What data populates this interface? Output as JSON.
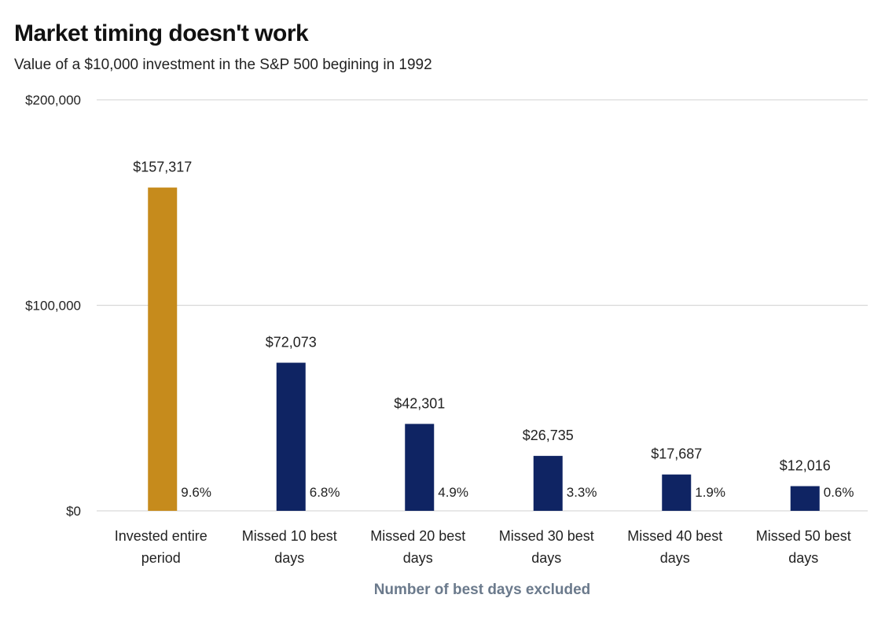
{
  "title": "Market timing doesn't work",
  "subtitle": "Value of a $10,000 investment in the S&P 500 begining in 1992",
  "colors": {
    "highlight": "#c68b1c",
    "primary": "#0f2463",
    "grid": "#d9d9d9",
    "xlabel": "#6b7a8c"
  },
  "chart_data": {
    "type": "bar",
    "title": "Market timing doesn't work",
    "subtitle": "Value of a $10,000 investment in the S&P 500 begining in 1992",
    "xlabel": "Number of best days excluded",
    "ylabel": "",
    "ylim": [
      0,
      200000
    ],
    "yticks": [
      0,
      100000,
      200000
    ],
    "ytick_labels": [
      "$0",
      "$100,000",
      "$200,000"
    ],
    "grid": true,
    "categories": [
      [
        "Invested entire",
        "period"
      ],
      [
        "Missed 10 best",
        "days"
      ],
      [
        "Missed 20 best",
        "days"
      ],
      [
        "Missed 30 best",
        "days"
      ],
      [
        "Missed 40 best",
        "days"
      ],
      [
        "Missed 50 best",
        "days"
      ]
    ],
    "values": [
      157317,
      72073,
      42301,
      26735,
      17687,
      12016
    ],
    "value_labels": [
      "$157,317",
      "$72,073",
      "$42,301",
      "$26,735",
      "$17,687",
      "$12,016"
    ],
    "return_labels": [
      "9.6%",
      "6.8%",
      "4.9%",
      "3.3%",
      "1.9%",
      "0.6%"
    ],
    "highlight_index": 0
  }
}
